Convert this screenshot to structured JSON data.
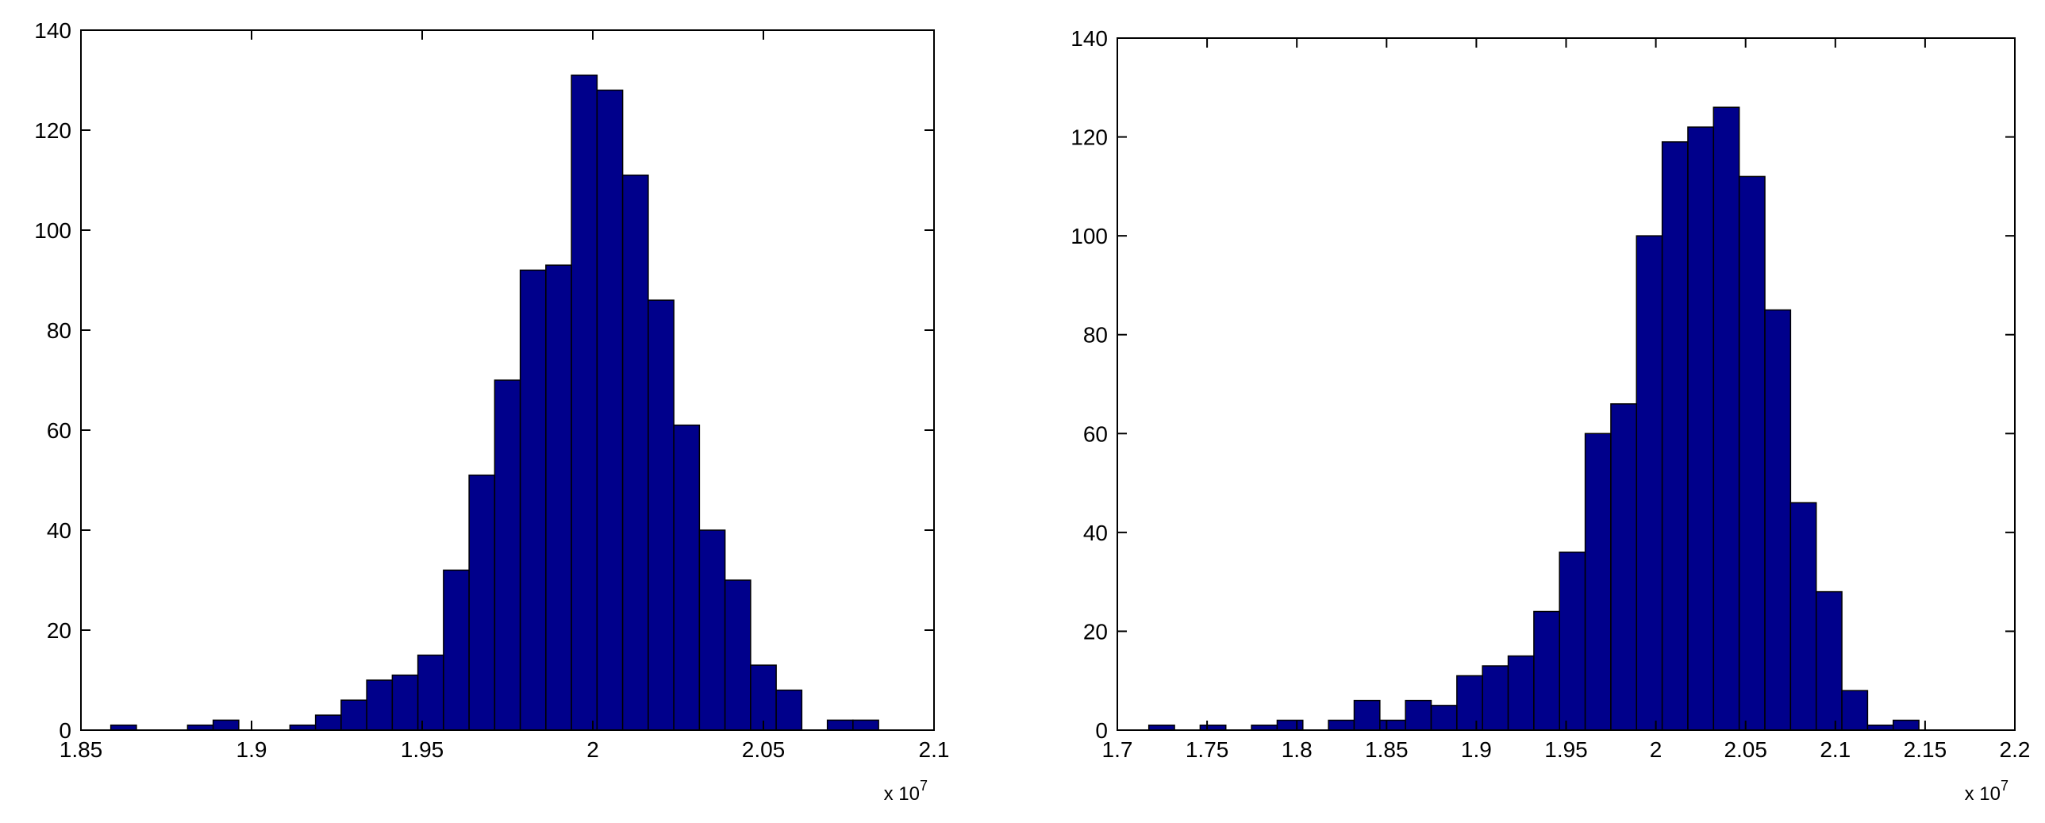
{
  "chart_data": [
    {
      "type": "bar",
      "title": "",
      "xlabel": "",
      "ylabel": "",
      "x_exponent_label": "x 10",
      "x_exponent_power": "7",
      "xlim": [
        1.85,
        2.1
      ],
      "ylim": [
        0,
        140
      ],
      "x_ticks": [
        1.85,
        1.9,
        1.95,
        2,
        2.05,
        2.1
      ],
      "x_tick_labels": [
        "1.85",
        "1.9",
        "1.95",
        "2",
        "2.05",
        "2.1"
      ],
      "y_ticks": [
        0,
        20,
        40,
        60,
        80,
        100,
        120,
        140
      ],
      "y_tick_labels": [
        "0",
        "20",
        "40",
        "60",
        "80",
        "100",
        "120",
        "140"
      ],
      "grid": false,
      "bar_color": "#00008b",
      "bin_width": 0.0075,
      "bin_centers": [
        1.8625,
        1.87,
        1.8775,
        1.885,
        1.8925,
        1.9,
        1.9075,
        1.915,
        1.9225,
        1.93,
        1.9375,
        1.945,
        1.9525,
        1.96,
        1.9675,
        1.975,
        1.9825,
        1.99,
        1.9975,
        2.005,
        2.0125,
        2.02,
        2.0275,
        2.035,
        2.0425,
        2.05,
        2.0575,
        2.065,
        2.0725,
        2.08,
        2.0875
      ],
      "values": [
        1,
        0,
        0,
        1,
        2,
        0,
        0,
        1,
        3,
        6,
        10,
        11,
        15,
        32,
        51,
        70,
        92,
        93,
        131,
        128,
        111,
        86,
        61,
        40,
        30,
        13,
        8,
        0,
        2,
        2,
        0
      ]
    },
    {
      "type": "bar",
      "title": "",
      "xlabel": "",
      "ylabel": "",
      "x_exponent_label": "x 10",
      "x_exponent_power": "7",
      "xlim": [
        1.7,
        2.2
      ],
      "ylim": [
        0,
        140
      ],
      "x_ticks": [
        1.7,
        1.75,
        1.8,
        1.85,
        1.9,
        1.95,
        2,
        2.05,
        2.1,
        2.15,
        2.2
      ],
      "x_tick_labels": [
        "1.7",
        "1.75",
        "1.8",
        "1.85",
        "1.9",
        "1.95",
        "2",
        "2.05",
        "2.1",
        "2.15",
        "2.2"
      ],
      "y_ticks": [
        0,
        20,
        40,
        60,
        80,
        100,
        120,
        140
      ],
      "y_tick_labels": [
        "0",
        "20",
        "40",
        "60",
        "80",
        "100",
        "120",
        "140"
      ],
      "grid": false,
      "bar_color": "#00008b",
      "bin_width": 0.0143,
      "bin_centers": [
        1.7247,
        1.739,
        1.7533,
        1.7676,
        1.7819,
        1.7962,
        1.8105,
        1.8248,
        1.8391,
        1.8534,
        1.8677,
        1.882,
        1.8963,
        1.9106,
        1.9249,
        1.9392,
        1.9535,
        1.9678,
        1.9821,
        1.9964,
        2.0107,
        2.025,
        2.0393,
        2.0536,
        2.0679,
        2.0822,
        2.0965,
        2.1108,
        2.1251,
        2.1394,
        2.1537
      ],
      "values": [
        1,
        0,
        1,
        0,
        1,
        2,
        0,
        2,
        6,
        2,
        6,
        5,
        11,
        13,
        15,
        24,
        36,
        60,
        66,
        100,
        119,
        122,
        126,
        112,
        85,
        46,
        28,
        8,
        1,
        2,
        0
      ]
    }
  ]
}
